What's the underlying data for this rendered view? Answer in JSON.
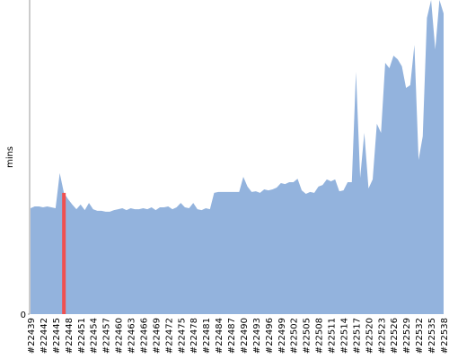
{
  "chart_data": {
    "type": "area",
    "y_label": "mins",
    "color": "#93b3dd",
    "highlight_color": "#f05050",
    "highlight_index": 8,
    "ylim": [
      0,
      100
    ],
    "yticks": [
      0
    ],
    "categories": [
      "#22439",
      null,
      null,
      "#22442",
      null,
      null,
      "#22445",
      null,
      null,
      "#22448",
      null,
      null,
      "#22451",
      null,
      null,
      "#22454",
      null,
      null,
      "#22457",
      null,
      null,
      "#22460",
      null,
      null,
      "#22463",
      null,
      null,
      "#22466",
      null,
      null,
      "#22469",
      null,
      null,
      "#22472",
      null,
      null,
      "#22475",
      null,
      null,
      "#22478",
      null,
      null,
      "#22481",
      null,
      null,
      "#22484",
      null,
      null,
      "#22487",
      null,
      null,
      "#22490",
      null,
      null,
      "#22493",
      null,
      null,
      "#22496",
      null,
      null,
      "#22499",
      null,
      null,
      "#22502",
      null,
      null,
      "#22505",
      null,
      null,
      "#22508",
      null,
      null,
      "#22511",
      null,
      null,
      "#22514",
      null,
      null,
      "#22517",
      null,
      null,
      "#22520",
      null,
      null,
      "#22523",
      null,
      null,
      "#22526",
      null,
      null,
      "#22529",
      null,
      null,
      "#22532",
      null,
      null,
      "#22535",
      null,
      null,
      "#22538"
    ],
    "values": [
      33.7,
      34.3,
      34.3,
      34.0,
      34.3,
      34.0,
      33.7,
      44.9,
      38.6,
      36.6,
      34.9,
      33.4,
      34.9,
      33.1,
      35.4,
      33.4,
      32.9,
      32.9,
      32.6,
      32.6,
      33.1,
      33.4,
      33.7,
      33.1,
      33.7,
      33.4,
      33.4,
      33.7,
      33.4,
      34.0,
      33.1,
      34.0,
      34.0,
      34.3,
      33.4,
      34.0,
      35.4,
      34.0,
      33.7,
      35.4,
      33.4,
      33.1,
      33.7,
      33.4,
      38.6,
      38.9,
      38.9,
      38.9,
      38.9,
      38.9,
      38.9,
      43.7,
      40.6,
      38.9,
      39.1,
      38.6,
      39.7,
      39.4,
      39.7,
      40.3,
      41.7,
      41.4,
      42.0,
      42.0,
      43.1,
      39.4,
      38.3,
      38.9,
      38.6,
      40.6,
      41.1,
      42.9,
      42.3,
      42.9,
      39.1,
      39.4,
      42.0,
      42.0,
      77.1,
      43.4,
      57.7,
      40.0,
      42.9,
      60.6,
      57.7,
      80.0,
      78.3,
      82.3,
      81.1,
      78.9,
      72.0,
      72.9,
      85.7,
      49.1,
      56.6,
      94.3,
      100,
      84.3,
      100,
      95.7
    ]
  }
}
